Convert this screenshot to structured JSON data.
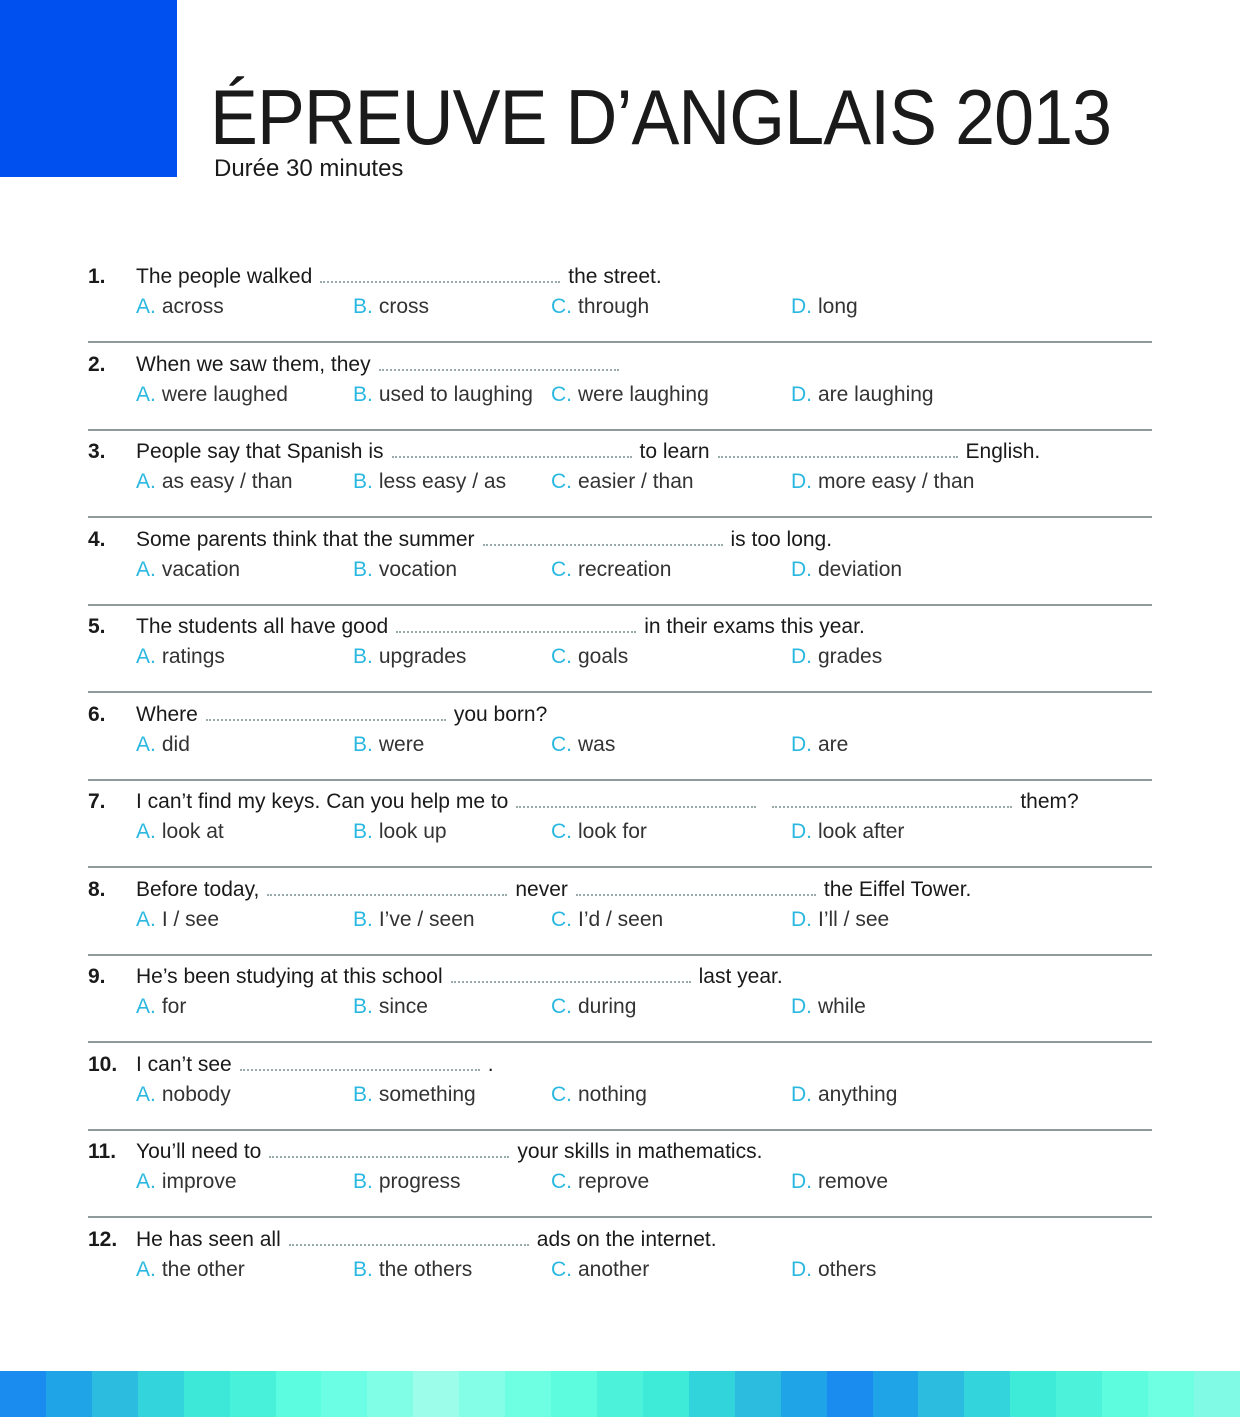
{
  "header": {
    "title": "ÉPREUVE D’ANGLAIS 2013",
    "subtitle": "Durée 30 minutes"
  },
  "colors": {
    "accent": "#0050f0",
    "option_letter": "#2ab8e0"
  },
  "questions": [
    {
      "number": "1.",
      "parts": [
        "The people walked",
        "the street."
      ],
      "options": [
        [
          "A.",
          "across"
        ],
        [
          "B.",
          "cross"
        ],
        [
          "C.",
          "through"
        ],
        [
          "D.",
          "long"
        ]
      ]
    },
    {
      "number": "2.",
      "parts": [
        "When we saw them, they",
        ""
      ],
      "options": [
        [
          "A.",
          "were laughed"
        ],
        [
          "B.",
          "used to laughing"
        ],
        [
          "C.",
          "were laughing"
        ],
        [
          "D.",
          "are laughing"
        ]
      ]
    },
    {
      "number": "3.",
      "parts": [
        "People say that Spanish is",
        "to learn",
        "English."
      ],
      "options": [
        [
          "A.",
          "as easy / than"
        ],
        [
          "B.",
          "less easy / as"
        ],
        [
          "C.",
          "easier / than"
        ],
        [
          "D.",
          "more easy / than"
        ]
      ]
    },
    {
      "number": "4.",
      "parts": [
        "Some parents think that the summer",
        "is too long."
      ],
      "options": [
        [
          "A.",
          "vacation"
        ],
        [
          "B.",
          "vocation"
        ],
        [
          "C.",
          "recreation"
        ],
        [
          "D.",
          "deviation"
        ]
      ]
    },
    {
      "number": "5.",
      "parts": [
        "The students all have good",
        "in their exams this year."
      ],
      "options": [
        [
          "A.",
          "ratings"
        ],
        [
          "B.",
          "upgrades"
        ],
        [
          "C.",
          "goals"
        ],
        [
          "D.",
          "grades"
        ]
      ]
    },
    {
      "number": "6.",
      "parts": [
        "Where",
        "you born?"
      ],
      "options": [
        [
          "A.",
          "did"
        ],
        [
          "B.",
          "were"
        ],
        [
          "C.",
          "was"
        ],
        [
          "D.",
          "are"
        ]
      ]
    },
    {
      "number": "7.",
      "parts": [
        "I can’t find my keys. Can you help me to",
        "",
        "them?"
      ],
      "options": [
        [
          "A.",
          "look at"
        ],
        [
          "B.",
          "look up"
        ],
        [
          "C.",
          "look for"
        ],
        [
          "D.",
          "look after"
        ]
      ]
    },
    {
      "number": "8.",
      "parts": [
        "Before today,",
        "never",
        "the Eiffel Tower."
      ],
      "options": [
        [
          "A.",
          "I / see"
        ],
        [
          "B.",
          "I’ve / seen"
        ],
        [
          "C.",
          "I’d / seen"
        ],
        [
          "D.",
          "I’ll / see"
        ]
      ]
    },
    {
      "number": "9.",
      "parts": [
        "He’s been studying at this school",
        "last year."
      ],
      "options": [
        [
          "A.",
          "for"
        ],
        [
          "B.",
          "since"
        ],
        [
          "C.",
          "during"
        ],
        [
          "D.",
          "while"
        ]
      ]
    },
    {
      "number": "10.",
      "parts": [
        "I can’t see",
        "."
      ],
      "options": [
        [
          "A.",
          "nobody"
        ],
        [
          "B.",
          "something"
        ],
        [
          "C.",
          "nothing"
        ],
        [
          "D.",
          "anything"
        ]
      ]
    },
    {
      "number": "11.",
      "parts": [
        "You’ll need to",
        "your skills in mathematics."
      ],
      "options": [
        [
          "A.",
          "improve"
        ],
        [
          "B.",
          "progress"
        ],
        [
          "C.",
          "reprove"
        ],
        [
          "D.",
          "remove"
        ]
      ]
    },
    {
      "number": "12.",
      "parts": [
        "He has seen all",
        "ads on the internet."
      ],
      "options": [
        [
          "A.",
          "the other"
        ],
        [
          "B.",
          "the others"
        ],
        [
          "C.",
          "another"
        ],
        [
          "D.",
          "others"
        ]
      ]
    }
  ],
  "footer_stripes": [
    "#1a8cf0",
    "#20a4e8",
    "#2cbce0",
    "#33d4dc",
    "#3ee8d8",
    "#48f2da",
    "#5cfce0",
    "#6cfee4",
    "#80fee6",
    "#9cfeea",
    "#84fee6",
    "#6efee2",
    "#5efcde",
    "#4cf2da",
    "#3eead8",
    "#32d4dc",
    "#2cbce0",
    "#20a4e8",
    "#1a8cf0",
    "#20a4e8",
    "#2cbce0",
    "#33d4dc",
    "#3eead8",
    "#4cf2da",
    "#5efcde",
    "#6efee2",
    "#80fae4"
  ]
}
